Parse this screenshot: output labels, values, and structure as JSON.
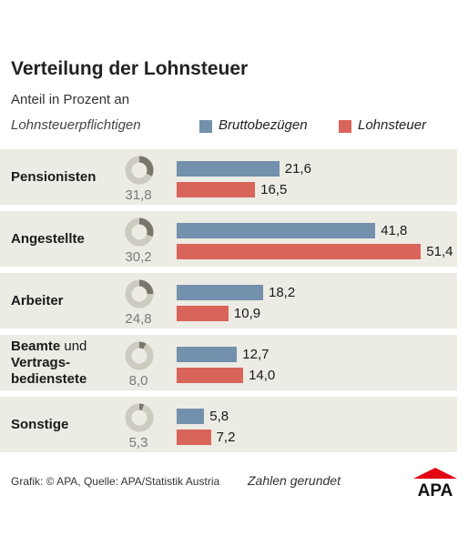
{
  "chart_data": {
    "type": "bar",
    "orientation": "horizontal",
    "title": "Verteilung der Lohnsteuer",
    "subtitle": "Anteil in Prozent an",
    "legend_lead": "Lohnsteuerpflichtigen",
    "categories": [
      {
        "label_bold": "Pensionisten",
        "label_normal": ""
      },
      {
        "label_bold": "Angestellte",
        "label_normal": ""
      },
      {
        "label_bold": "Arbeiter",
        "label_normal": ""
      },
      {
        "label_bold": "Beamte",
        "label_normal": "und",
        "label_line2": "Vertrags-",
        "label_line3": "bedienstete"
      },
      {
        "label_bold": "Sonstige",
        "label_normal": ""
      }
    ],
    "donut_series": {
      "name": "Lohnsteuerpflichtigen",
      "values": [
        31.8,
        30.2,
        24.8,
        8.0,
        5.3
      ],
      "labels": [
        "31,8",
        "30,2",
        "24,8",
        "8,0",
        "5,3"
      ]
    },
    "series": [
      {
        "name": "Bruttobezügen",
        "color": "#7390ad",
        "values": [
          21.6,
          41.8,
          18.2,
          12.7,
          5.8
        ],
        "labels": [
          "21,6",
          "41,8",
          "18,2",
          "12,7",
          "5,8"
        ]
      },
      {
        "name": "Lohnsteuer",
        "color": "#d9645a",
        "values": [
          16.5,
          51.4,
          10.9,
          14.0,
          7.2
        ],
        "labels": [
          "16,5",
          "51,4",
          "10,9",
          "14,0",
          "7,2"
        ]
      }
    ]
  },
  "footer": {
    "source": "Grafik: © APA, Quelle: APA/Statistik Austria",
    "note": "Zahlen gerundet"
  },
  "logo": {
    "text": "APA",
    "color": "#e30613"
  },
  "colors": {
    "row_shade": "#ecebe4",
    "donut_fill": "#7a766b",
    "donut_track": "#cdcbc0"
  }
}
